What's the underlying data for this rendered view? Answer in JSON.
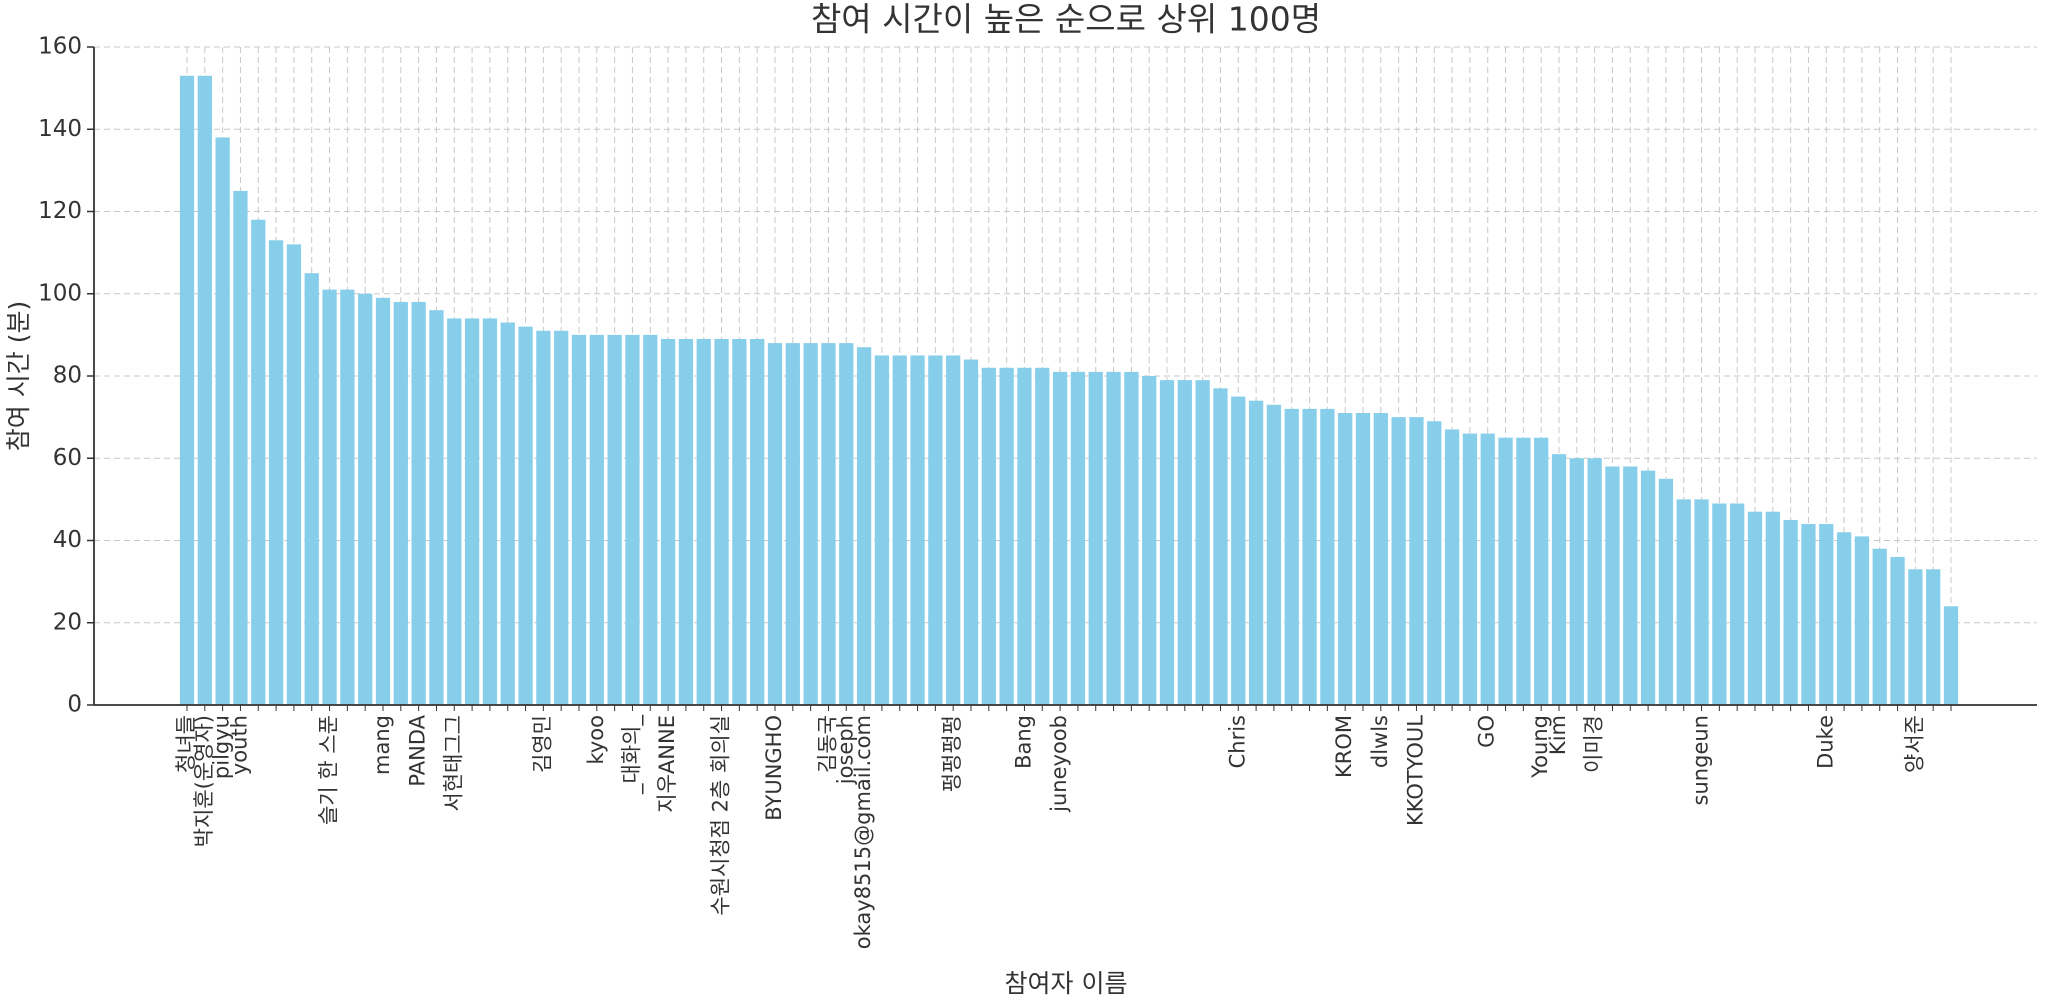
{
  "chart_data": {
    "type": "bar",
    "title": "참여 시간이 높은 순으로 상위 100명",
    "x_label": "참여자 이름",
    "y_label": "참여 시간 (분)",
    "categories": [
      "청녀들",
      "박지훈(운영자)",
      "pilgyu",
      "youth",
      null,
      null,
      null,
      null,
      "슬기 한 스푼",
      null,
      null,
      "mang",
      null,
      "PANDA",
      null,
      "서현태그그",
      null,
      null,
      null,
      null,
      "김영민",
      null,
      null,
      "kyoo",
      null,
      "_대화의_",
      null,
      "지우ANNE",
      null,
      null,
      "수원시청점 2층 회의실",
      null,
      null,
      "BYUNGHO",
      null,
      null,
      "김동국",
      "joseph",
      "okay8515@gmail.com",
      null,
      null,
      null,
      null,
      "펑펑펑펑",
      null,
      null,
      null,
      "Bang",
      null,
      "juneyoob",
      null,
      null,
      null,
      null,
      null,
      null,
      null,
      null,
      null,
      "Chris",
      null,
      null,
      null,
      null,
      null,
      "KROM",
      null,
      "dlwls",
      null,
      "KKOTYOUL",
      null,
      null,
      null,
      "GO",
      null,
      null,
      "Young",
      "Kim",
      null,
      "이미경",
      null,
      null,
      null,
      null,
      null,
      "sungeun",
      null,
      null,
      null,
      null,
      null,
      null,
      "Duke",
      null,
      null,
      null,
      null,
      "양서준",
      null,
      null
    ],
    "values": [
      153,
      153,
      138,
      125,
      118,
      113,
      112,
      105,
      101,
      101,
      100,
      99,
      98,
      98,
      96,
      94,
      94,
      94,
      93,
      92,
      91,
      91,
      90,
      90,
      90,
      90,
      90,
      89,
      89,
      89,
      89,
      89,
      89,
      88,
      88,
      88,
      88,
      88,
      87,
      85,
      85,
      85,
      85,
      85,
      84,
      82,
      82,
      82,
      82,
      81,
      81,
      81,
      81,
      81,
      80,
      79,
      79,
      79,
      77,
      75,
      74,
      73,
      72,
      72,
      72,
      71,
      71,
      71,
      70,
      70,
      69,
      67,
      66,
      66,
      65,
      65,
      65,
      61,
      60,
      60,
      58,
      58,
      57,
      55,
      50,
      50,
      49,
      49,
      47,
      47,
      45,
      44,
      44,
      42,
      41,
      38,
      36,
      33,
      33,
      24
    ],
    "color": "#87ceeb",
    "ylim": [
      0,
      160
    ],
    "yticks": [
      0,
      20,
      40,
      60,
      80,
      100,
      120,
      140,
      160
    ],
    "grid": true
  }
}
